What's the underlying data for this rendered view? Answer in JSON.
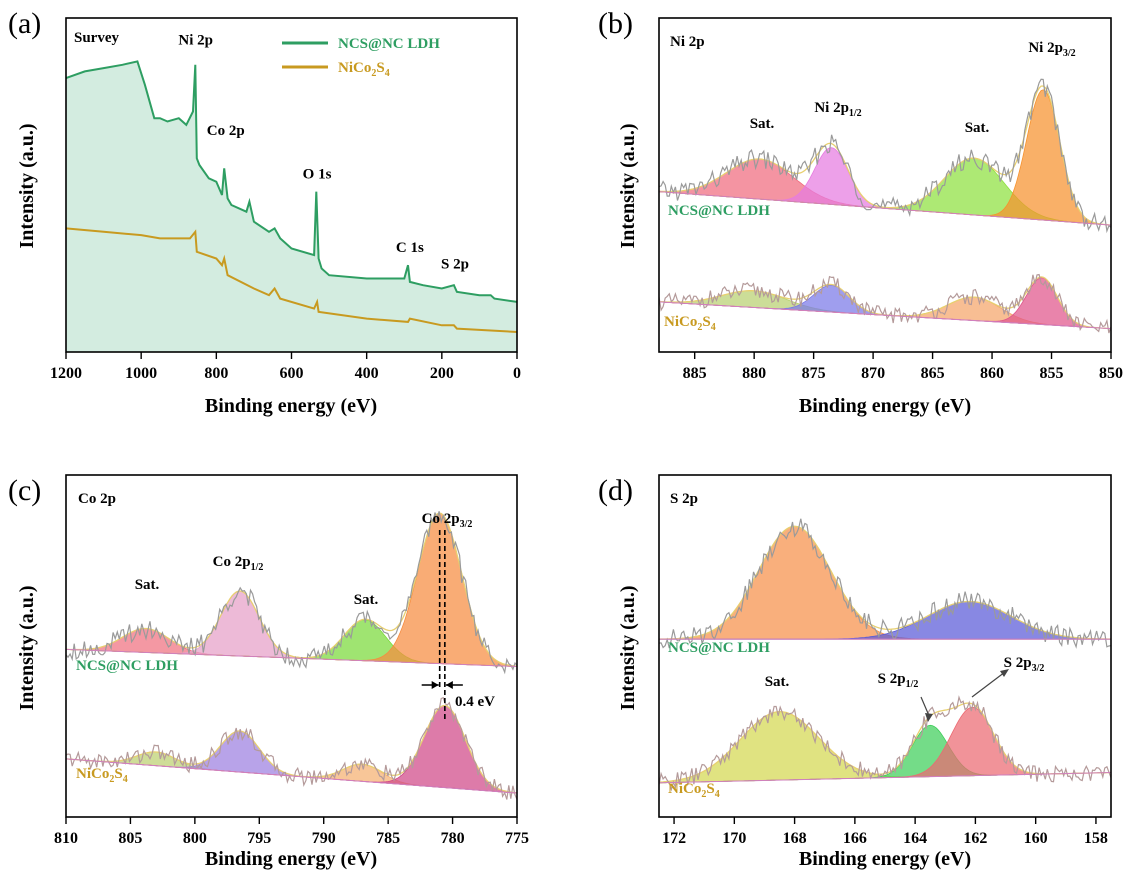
{
  "chart_data": [
    {
      "panel": "(a)",
      "type": "line",
      "corner_title": "Survey",
      "xlabel": "Binding energy (eV)",
      "ylabel": "Intensity (a.u.)",
      "xlim": [
        1200,
        0
      ],
      "x_reversed": true,
      "xticks": [
        1200,
        1000,
        800,
        600,
        400,
        200,
        0
      ],
      "ylim": [
        0,
        100
      ],
      "y_ticks_shown": false,
      "legend": {
        "position": "top-center",
        "entries": [
          "NCS@NC LDH",
          "NiCo2S4"
        ]
      },
      "series": [
        {
          "name": "NCS@NC LDH",
          "color": "#2e9e62",
          "fill": "#d3ece0",
          "x": [
            1200,
            1150,
            1100,
            1050,
            1010,
            990,
            965,
            950,
            930,
            900,
            880,
            862,
            856,
            852,
            845,
            820,
            800,
            785,
            779,
            770,
            760,
            720,
            712,
            700,
            660,
            645,
            630,
            600,
            540,
            534,
            528,
            520,
            500,
            400,
            300,
            290,
            285,
            250,
            200,
            168,
            160,
            100,
            70,
            60,
            0
          ],
          "y": [
            82,
            84,
            85,
            86,
            87,
            80,
            70,
            70,
            69,
            70,
            68,
            72,
            86,
            58,
            56,
            52,
            51,
            47,
            55,
            46,
            44,
            42,
            45,
            39,
            36,
            37,
            34,
            31,
            29,
            48,
            28,
            25,
            23,
            22,
            22,
            26,
            21,
            20,
            19,
            20,
            18,
            17,
            17,
            16,
            15
          ]
        },
        {
          "name": "NiCo2S4",
          "color": "#c89a20",
          "fill": "#f6e4c8",
          "x": [
            1200,
            1100,
            1000,
            950,
            900,
            870,
            856,
            852,
            800,
            785,
            779,
            770,
            700,
            660,
            645,
            630,
            540,
            532,
            528,
            400,
            290,
            285,
            200,
            168,
            160,
            0
          ],
          "y": [
            37,
            36,
            35,
            34,
            34,
            34,
            36,
            30,
            28,
            26,
            28,
            23,
            19,
            17,
            19,
            16,
            13,
            15,
            12,
            10,
            9,
            10,
            8,
            8,
            7,
            6
          ]
        }
      ],
      "annotations": [
        {
          "text": "Ni 2p",
          "x": 855,
          "y": 92
        },
        {
          "text": "Co 2p",
          "x": 775,
          "y": 65
        },
        {
          "text": "O 1s",
          "x": 532,
          "y": 52
        },
        {
          "text": "C 1s",
          "x": 285,
          "y": 30
        },
        {
          "text": "S 2p",
          "x": 165,
          "y": 25
        }
      ]
    },
    {
      "panel": "(b)",
      "type": "area",
      "corner_title": "Ni 2p",
      "xlabel": "Binding energy (eV)",
      "ylabel": "Intensity (a.u.)",
      "xlim": [
        888,
        850
      ],
      "x_reversed": true,
      "xticks": [
        885,
        880,
        875,
        870,
        865,
        860,
        855,
        850
      ],
      "ylim": [
        0,
        100
      ],
      "y_ticks_shown": false,
      "spectra": [
        {
          "name": "NCS@NC LDH",
          "label_color": "#2e9e62",
          "baseline": [
            888,
            48,
            850,
            38
          ],
          "peaks": [
            {
              "label": "Sat.",
              "center": 879.5,
              "height": 12,
              "width": 2.8,
              "color": "#f06b7e"
            },
            {
              "label": "Ni 2p1/2",
              "center": 873.5,
              "height": 17,
              "width": 1.4,
              "color": "#e67be0"
            },
            {
              "label": "Sat.",
              "center": 861.5,
              "height": 17,
              "width": 2.5,
              "color": "#8de03e"
            },
            {
              "label": "Ni 2p3/2",
              "center": 855.7,
              "height": 39,
              "width": 1.4,
              "color": "#f6922e"
            }
          ]
        },
        {
          "name": "NiCo2S4",
          "label_color": "#c89a20",
          "baseline": [
            888,
            15,
            850,
            7
          ],
          "peaks": [
            {
              "label": "Sat.",
              "center": 880.0,
              "height": 5,
              "width": 2.7,
              "color": "#b8d070"
            },
            {
              "label": "Ni 2p1/2",
              "center": 873.5,
              "height": 8,
              "width": 1.5,
              "color": "#7a78e8"
            },
            {
              "label": "Sat.",
              "center": 861.5,
              "height": 7,
              "width": 2.2,
              "color": "#f5a56a"
            },
            {
              "label": "Ni 2p3/2",
              "center": 855.8,
              "height": 14,
              "width": 1.3,
              "color": "#e0558a"
            }
          ]
        }
      ],
      "annotations": [
        {
          "text": "Sat.",
          "x": 879.5,
          "y": 66
        },
        {
          "text": "Ni 2p1/2",
          "x": 873.5,
          "y": 72
        },
        {
          "text": "Sat.",
          "x": 861.5,
          "y": 64
        },
        {
          "text": "Ni 2p3/2",
          "x": 855.5,
          "y": 90
        }
      ]
    },
    {
      "panel": "(c)",
      "type": "area",
      "corner_title": "Co 2p",
      "xlabel": "Binding energy (eV)",
      "ylabel": "Intensity (a.u.)",
      "xlim": [
        810,
        775
      ],
      "x_reversed": true,
      "xticks": [
        810,
        805,
        800,
        795,
        790,
        785,
        780,
        775
      ],
      "ylim": [
        0,
        100
      ],
      "y_ticks_shown": false,
      "spectra": [
        {
          "name": "NCS@NC LDH",
          "label_color": "#2e9e62",
          "baseline": [
            810,
            49,
            775,
            44
          ],
          "peaks": [
            {
              "label": "Sat.",
              "center": 803.8,
              "height": 7,
              "width": 1.8,
              "color": "#f07080"
            },
            {
              "label": "Co 2p1/2",
              "center": 796.5,
              "height": 19,
              "width": 1.5,
              "color": "#e6a0c8"
            },
            {
              "label": "Sat.",
              "center": 786.8,
              "height": 12,
              "width": 1.6,
              "color": "#7ada3a"
            },
            {
              "label": "Co 2p3/2",
              "center": 781.0,
              "height": 44,
              "width": 1.7,
              "color": "#f68c40"
            }
          ]
        },
        {
          "name": "NiCo2S4",
          "label_color": "#c89a20",
          "baseline": [
            810,
            17,
            775,
            7
          ],
          "peaks": [
            {
              "label": "Sat.",
              "center": 803.0,
              "height": 4,
              "width": 1.5,
              "color": "#bcd070"
            },
            {
              "label": "Co 2p1/2",
              "center": 796.5,
              "height": 12,
              "width": 1.5,
              "color": "#9d80e0"
            },
            {
              "label": "Sat.",
              "center": 787.0,
              "height": 5,
              "width": 1.5,
              "color": "#f5b070"
            },
            {
              "label": "Co 2p3/2",
              "center": 780.6,
              "height": 24,
              "width": 1.6,
              "color": "#d04888"
            }
          ]
        }
      ],
      "annotations": [
        {
          "text": "Sat.",
          "x": 803.8,
          "y": 60
        },
        {
          "text": "Co 2p1/2",
          "x": 796.0,
          "y": 74
        },
        {
          "text": "Sat.",
          "x": 786.8,
          "y": 63
        },
        {
          "text": "Co 2p3/2",
          "x": 780.5,
          "y": 95
        },
        {
          "text": "0.4 eV",
          "x": 778.0,
          "y": 41
        }
      ],
      "shift_marker": {
        "from": 781.0,
        "to": 780.6,
        "label": "0.4 eV"
      }
    },
    {
      "panel": "(d)",
      "type": "area",
      "corner_title": "S 2p",
      "xlabel": "Binding energy (eV)",
      "ylabel": "Intensity (a.u.)",
      "xlim": [
        172.5,
        157.5
      ],
      "x_reversed": true,
      "xticks": [
        172,
        170,
        168,
        166,
        164,
        162,
        160,
        158
      ],
      "ylim": [
        0,
        100
      ],
      "y_ticks_shown": false,
      "spectra": [
        {
          "name": "NCS@NC LDH",
          "label_color": "#2e9e62",
          "baseline": [
            172.5,
            52,
            157.5,
            52
          ],
          "peaks": [
            {
              "label": "Sat.",
              "center": 168.0,
              "height": 33,
              "width": 1.2,
              "color": "#f6904a"
            },
            {
              "label": "S 2p",
              "center": 162.2,
              "height": 11,
              "width": 1.4,
              "color": "#5a5ad8"
            }
          ]
        },
        {
          "name": "NiCo2S4",
          "label_color": "#c89a20",
          "baseline": [
            172.5,
            10,
            157.5,
            13
          ],
          "peaks": [
            {
              "label": "Sat.",
              "center": 168.5,
              "height": 20,
              "width": 1.3,
              "color": "#d4d850"
            },
            {
              "label": "S 2p1/2",
              "center": 163.5,
              "height": 15,
              "width": 0.6,
              "color": "#3fce5a"
            },
            {
              "label": "S 2p3/2",
              "center": 162.1,
              "height": 20,
              "width": 0.7,
              "color": "#ec6a72"
            }
          ]
        }
      ],
      "annotations": [
        {
          "text": "Sat.",
          "x": 168.5,
          "y": 37
        },
        {
          "text": "S 2p1/2",
          "x": 164.0,
          "y": 43
        },
        {
          "text": "S 2p3/2",
          "x": 160.5,
          "y": 47
        }
      ]
    }
  ]
}
